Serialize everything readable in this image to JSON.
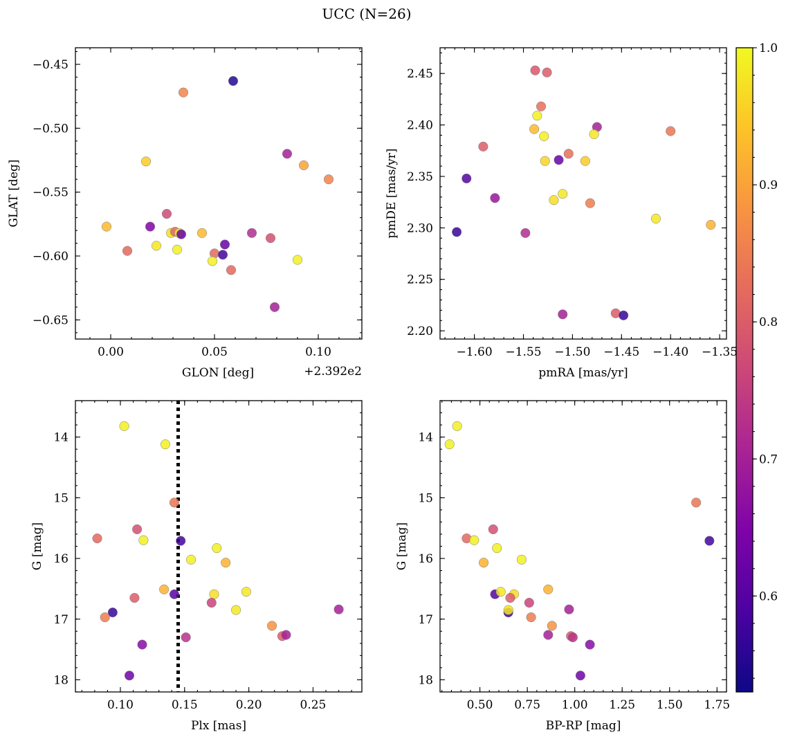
{
  "figure": {
    "title": "UCC (N=26)"
  },
  "colorbar": {
    "min": 0.53,
    "max": 1.0,
    "ticks": [
      0.6,
      0.7,
      0.8,
      0.9,
      1.0
    ],
    "tick_labels": [
      "0.6",
      "0.7",
      "0.8",
      "0.9",
      "1.0"
    ],
    "colormap": "plasma"
  },
  "chart_data": [
    {
      "type": "scatter",
      "xlabel": "GLON [deg]",
      "ylabel": "GLAT [deg]",
      "x_offset_label": "+2.392e2",
      "xlim": [
        -0.017,
        0.121
      ],
      "ylim": [
        -0.665,
        -0.437
      ],
      "xticks": [
        0.0,
        0.05,
        0.1
      ],
      "xtick_labels": [
        "0.00",
        "0.05",
        "0.10"
      ],
      "yticks": [
        -0.45,
        -0.5,
        -0.55,
        -0.6,
        -0.65
      ],
      "ytick_labels": [
        "−0.45",
        "−0.50",
        "−0.55",
        "−0.60",
        "−0.65"
      ],
      "y_inverted": false,
      "vline": null,
      "points": [
        {
          "x": 0.059,
          "y": -0.463,
          "c": 0.55
        },
        {
          "x": 0.035,
          "y": -0.472,
          "c": 0.86
        },
        {
          "x": 0.017,
          "y": -0.526,
          "c": 0.95
        },
        {
          "x": 0.085,
          "y": -0.52,
          "c": 0.7
        },
        {
          "x": 0.093,
          "y": -0.529,
          "c": 0.9
        },
        {
          "x": 0.105,
          "y": -0.54,
          "c": 0.86
        },
        {
          "x": 0.027,
          "y": -0.567,
          "c": 0.77
        },
        {
          "x": -0.002,
          "y": -0.577,
          "c": 0.93
        },
        {
          "x": 0.019,
          "y": -0.577,
          "c": 0.65
        },
        {
          "x": 0.029,
          "y": -0.582,
          "c": 0.97
        },
        {
          "x": 0.031,
          "y": -0.581,
          "c": 0.82
        },
        {
          "x": 0.033,
          "y": -0.582,
          "c": 0.98
        },
        {
          "x": 0.034,
          "y": -0.583,
          "c": 0.62
        },
        {
          "x": 0.044,
          "y": -0.582,
          "c": 0.93
        },
        {
          "x": 0.068,
          "y": -0.582,
          "c": 0.72
        },
        {
          "x": 0.077,
          "y": -0.586,
          "c": 0.78
        },
        {
          "x": 0.008,
          "y": -0.596,
          "c": 0.82
        },
        {
          "x": 0.022,
          "y": -0.592,
          "c": 0.98
        },
        {
          "x": 0.032,
          "y": -0.595,
          "c": 0.99
        },
        {
          "x": 0.05,
          "y": -0.598,
          "c": 0.82
        },
        {
          "x": 0.054,
          "y": -0.599,
          "c": 0.58
        },
        {
          "x": 0.055,
          "y": -0.591,
          "c": 0.62
        },
        {
          "x": 0.049,
          "y": -0.604,
          "c": 0.99
        },
        {
          "x": 0.09,
          "y": -0.603,
          "c": 0.99
        },
        {
          "x": 0.058,
          "y": -0.611,
          "c": 0.82
        },
        {
          "x": 0.079,
          "y": -0.64,
          "c": 0.7
        }
      ]
    },
    {
      "type": "scatter",
      "xlabel": "pmRA [mas/yr]",
      "ylabel": "pmDE [mas/yr]",
      "x_offset_label": "",
      "xlim": [
        -1.635,
        -1.343
      ],
      "ylim": [
        2.192,
        2.475
      ],
      "xticks": [
        -1.6,
        -1.55,
        -1.5,
        -1.45,
        -1.4,
        -1.35
      ],
      "xtick_labels": [
        "−1.60",
        "−1.55",
        "−1.50",
        "−1.45",
        "−1.40",
        "−1.35"
      ],
      "yticks": [
        2.2,
        2.25,
        2.3,
        2.35,
        2.4,
        2.45
      ],
      "ytick_labels": [
        "2.20",
        "2.25",
        "2.30",
        "2.35",
        "2.40",
        "2.45"
      ],
      "y_inverted": false,
      "vline": null,
      "points": [
        {
          "x": -1.538,
          "y": 2.453,
          "c": 0.79
        },
        {
          "x": -1.526,
          "y": 2.451,
          "c": 0.8
        },
        {
          "x": -1.532,
          "y": 2.418,
          "c": 0.83
        },
        {
          "x": -1.536,
          "y": 2.409,
          "c": 0.99
        },
        {
          "x": -1.539,
          "y": 2.396,
          "c": 0.93
        },
        {
          "x": -1.529,
          "y": 2.389,
          "c": 0.99
        },
        {
          "x": -1.475,
          "y": 2.398,
          "c": 0.7
        },
        {
          "x": -1.478,
          "y": 2.391,
          "c": 0.98
        },
        {
          "x": -1.4,
          "y": 2.394,
          "c": 0.84
        },
        {
          "x": -1.591,
          "y": 2.379,
          "c": 0.8
        },
        {
          "x": -1.504,
          "y": 2.372,
          "c": 0.83
        },
        {
          "x": -1.514,
          "y": 2.366,
          "c": 0.62
        },
        {
          "x": -1.528,
          "y": 2.365,
          "c": 0.96
        },
        {
          "x": -1.487,
          "y": 2.365,
          "c": 0.95
        },
        {
          "x": -1.608,
          "y": 2.348,
          "c": 0.6
        },
        {
          "x": -1.51,
          "y": 2.333,
          "c": 0.98
        },
        {
          "x": -1.519,
          "y": 2.327,
          "c": 0.97
        },
        {
          "x": -1.579,
          "y": 2.329,
          "c": 0.68
        },
        {
          "x": -1.482,
          "y": 2.324,
          "c": 0.85
        },
        {
          "x": -1.415,
          "y": 2.309,
          "c": 0.98
        },
        {
          "x": -1.359,
          "y": 2.303,
          "c": 0.92
        },
        {
          "x": -1.618,
          "y": 2.296,
          "c": 0.57
        },
        {
          "x": -1.548,
          "y": 2.295,
          "c": 0.72
        },
        {
          "x": -1.51,
          "y": 2.216,
          "c": 0.7
        },
        {
          "x": -1.456,
          "y": 2.217,
          "c": 0.8
        },
        {
          "x": -1.448,
          "y": 2.215,
          "c": 0.57
        }
      ]
    },
    {
      "type": "scatter",
      "xlabel": "Plx [mas]",
      "ylabel": "G [mag]",
      "x_offset_label": "",
      "xlim": [
        0.065,
        0.288
      ],
      "ylim": [
        13.4,
        18.2
      ],
      "xticks": [
        0.1,
        0.15,
        0.2,
        0.25
      ],
      "xtick_labels": [
        "0.10",
        "0.15",
        "0.20",
        "0.25"
      ],
      "yticks": [
        14,
        15,
        16,
        17,
        18
      ],
      "ytick_labels": [
        "14",
        "15",
        "16",
        "17",
        "18"
      ],
      "y_inverted": true,
      "vline": 0.145,
      "points": [
        {
          "x": 0.103,
          "y": 13.82,
          "c": 0.99
        },
        {
          "x": 0.135,
          "y": 14.12,
          "c": 0.99
        },
        {
          "x": 0.142,
          "y": 15.08,
          "c": 0.84
        },
        {
          "x": 0.082,
          "y": 15.67,
          "c": 0.82
        },
        {
          "x": 0.113,
          "y": 15.52,
          "c": 0.78
        },
        {
          "x": 0.118,
          "y": 15.7,
          "c": 0.99
        },
        {
          "x": 0.147,
          "y": 15.71,
          "c": 0.58
        },
        {
          "x": 0.175,
          "y": 15.83,
          "c": 0.99
        },
        {
          "x": 0.155,
          "y": 16.02,
          "c": 0.99
        },
        {
          "x": 0.182,
          "y": 16.07,
          "c": 0.92
        },
        {
          "x": 0.134,
          "y": 16.51,
          "c": 0.92
        },
        {
          "x": 0.142,
          "y": 16.59,
          "c": 0.6
        },
        {
          "x": 0.173,
          "y": 16.59,
          "c": 0.97
        },
        {
          "x": 0.198,
          "y": 16.55,
          "c": 0.98
        },
        {
          "x": 0.111,
          "y": 16.65,
          "c": 0.8
        },
        {
          "x": 0.171,
          "y": 16.73,
          "c": 0.76
        },
        {
          "x": 0.094,
          "y": 16.89,
          "c": 0.57
        },
        {
          "x": 0.19,
          "y": 16.85,
          "c": 0.98
        },
        {
          "x": 0.27,
          "y": 16.84,
          "c": 0.7
        },
        {
          "x": 0.088,
          "y": 16.97,
          "c": 0.85
        },
        {
          "x": 0.218,
          "y": 17.11,
          "c": 0.88
        },
        {
          "x": 0.151,
          "y": 17.3,
          "c": 0.73
        },
        {
          "x": 0.226,
          "y": 17.28,
          "c": 0.8
        },
        {
          "x": 0.229,
          "y": 17.26,
          "c": 0.7
        },
        {
          "x": 0.117,
          "y": 17.42,
          "c": 0.66
        },
        {
          "x": 0.107,
          "y": 17.93,
          "c": 0.63
        }
      ]
    },
    {
      "type": "scatter",
      "xlabel": "BP-RP [mag]",
      "ylabel": "G [mag]",
      "x_offset_label": "",
      "xlim": [
        0.29,
        1.8
      ],
      "ylim": [
        13.4,
        18.2
      ],
      "xticks": [
        0.5,
        0.75,
        1.0,
        1.25,
        1.5,
        1.75
      ],
      "xtick_labels": [
        "0.50",
        "0.75",
        "1.00",
        "1.25",
        "1.50",
        "1.75"
      ],
      "yticks": [
        14,
        15,
        16,
        17,
        18
      ],
      "ytick_labels": [
        "14",
        "15",
        "16",
        "17",
        "18"
      ],
      "y_inverted": true,
      "vline": null,
      "points": [
        {
          "x": 0.38,
          "y": 13.82,
          "c": 0.99
        },
        {
          "x": 0.34,
          "y": 14.12,
          "c": 0.99
        },
        {
          "x": 1.64,
          "y": 15.08,
          "c": 0.84
        },
        {
          "x": 1.71,
          "y": 15.71,
          "c": 0.58
        },
        {
          "x": 0.43,
          "y": 15.67,
          "c": 0.82
        },
        {
          "x": 0.47,
          "y": 15.7,
          "c": 0.99
        },
        {
          "x": 0.57,
          "y": 15.52,
          "c": 0.78
        },
        {
          "x": 0.59,
          "y": 15.83,
          "c": 0.99
        },
        {
          "x": 0.52,
          "y": 16.07,
          "c": 0.92
        },
        {
          "x": 0.72,
          "y": 16.02,
          "c": 0.99
        },
        {
          "x": 0.86,
          "y": 16.51,
          "c": 0.92
        },
        {
          "x": 0.58,
          "y": 16.59,
          "c": 0.6
        },
        {
          "x": 0.61,
          "y": 16.55,
          "c": 0.98
        },
        {
          "x": 0.68,
          "y": 16.59,
          "c": 0.97
        },
        {
          "x": 0.66,
          "y": 16.65,
          "c": 0.8
        },
        {
          "x": 0.76,
          "y": 16.73,
          "c": 0.76
        },
        {
          "x": 0.65,
          "y": 16.89,
          "c": 0.57
        },
        {
          "x": 0.65,
          "y": 16.85,
          "c": 0.98
        },
        {
          "x": 0.97,
          "y": 16.84,
          "c": 0.7
        },
        {
          "x": 0.77,
          "y": 16.97,
          "c": 0.85
        },
        {
          "x": 0.88,
          "y": 17.11,
          "c": 0.88
        },
        {
          "x": 0.86,
          "y": 17.26,
          "c": 0.7
        },
        {
          "x": 0.98,
          "y": 17.28,
          "c": 0.8
        },
        {
          "x": 0.99,
          "y": 17.3,
          "c": 0.73
        },
        {
          "x": 1.08,
          "y": 17.42,
          "c": 0.66
        },
        {
          "x": 1.03,
          "y": 17.93,
          "c": 0.63
        }
      ]
    }
  ]
}
